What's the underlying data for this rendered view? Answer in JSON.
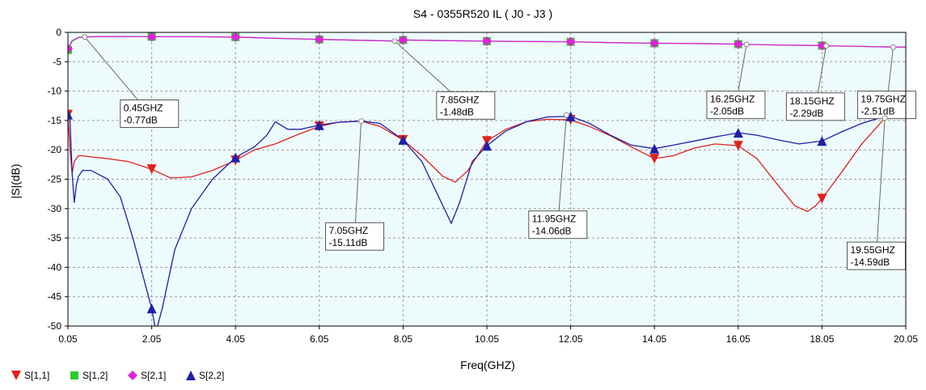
{
  "chart_data": {
    "type": "line",
    "title": "S4 - 0355R520  IL  ( J0 - J3 )",
    "xlabel": "Freq(GHZ)",
    "ylabel": "|S|(dB)",
    "xlim": [
      0.05,
      20.05
    ],
    "ylim": [
      -50,
      0
    ],
    "xticks": [
      0.05,
      2.05,
      4.05,
      6.05,
      8.05,
      10.05,
      12.05,
      14.05,
      16.05,
      18.05,
      20.05
    ],
    "xtick_labels": [
      "0.05",
      "2.05",
      "4.05",
      "6.05",
      "8.05",
      "10.05",
      "12.05",
      "14.05",
      "16.05",
      "18.05",
      "20.05"
    ],
    "yticks": [
      0,
      -5,
      -10,
      -15,
      -20,
      -25,
      -30,
      -35,
      -40,
      -45,
      -50
    ],
    "ytick_labels": [
      "0",
      "-5",
      "-10",
      "-15",
      "-20",
      "-25",
      "-30",
      "-35",
      "-40",
      "-45",
      "-50"
    ],
    "grid": true,
    "legend_position": "bottom-left",
    "series": [
      {
        "name": "S[1,1]",
        "color": "#e0201b",
        "marker": "triangle-down",
        "x": [
          0.05,
          0.1,
          0.15,
          0.2,
          0.3,
          0.4,
          0.6,
          1.0,
          1.5,
          2.05,
          2.5,
          3.0,
          3.5,
          4.05,
          4.5,
          5.0,
          5.5,
          6.05,
          6.5,
          7.05,
          7.5,
          8.05,
          8.5,
          9.0,
          9.3,
          9.6,
          10.05,
          10.5,
          11.0,
          11.5,
          12.05,
          12.5,
          13.0,
          13.5,
          14.05,
          14.5,
          15.0,
          15.5,
          16.05,
          16.5,
          17.0,
          17.4,
          17.7,
          17.9,
          18.05,
          18.5,
          19.0,
          19.55,
          20.05
        ],
        "y": [
          -14,
          -20,
          -24,
          -22,
          -21,
          -21,
          -21.2,
          -21.5,
          -22,
          -23.3,
          -24.8,
          -24.6,
          -23.5,
          -21.8,
          -20,
          -19,
          -17.5,
          -16,
          -15.3,
          -15.1,
          -16,
          -18.3,
          -21,
          -24.5,
          -25.5,
          -23.5,
          -18.5,
          -16.5,
          -15.2,
          -14.8,
          -14.9,
          -16,
          -17.6,
          -19.5,
          -21.5,
          -21,
          -19.7,
          -19,
          -19.3,
          -21.5,
          -26,
          -29.5,
          -30.5,
          -29.5,
          -28.3,
          -24,
          -19,
          -14.59,
          -13.5
        ],
        "marker_x": [
          0.05,
          2.05,
          4.05,
          6.05,
          8.05,
          10.05,
          12.05,
          14.05,
          16.05,
          18.05
        ],
        "marker_y": [
          -14,
          -23.3,
          -21.8,
          -16,
          -18.3,
          -18.5,
          -14.9,
          -21.5,
          -19.3,
          -28.3
        ]
      },
      {
        "name": "S[1,2]",
        "color": "#2ec92e",
        "marker": "square",
        "x": [
          0.05,
          0.15,
          0.3,
          0.45,
          1.0,
          2.05,
          3.0,
          4.05,
          5.0,
          6.05,
          7.05,
          7.85,
          8.05,
          9.0,
          10.05,
          11.0,
          12.05,
          13.0,
          14.05,
          15.0,
          16.05,
          16.25,
          17.0,
          18.05,
          18.15,
          19.0,
          19.75,
          20.05
        ],
        "y": [
          -3,
          -1.5,
          -0.9,
          -0.77,
          -0.7,
          -0.75,
          -0.75,
          -0.8,
          -1.0,
          -1.2,
          -1.35,
          -1.48,
          -1.3,
          -1.4,
          -1.5,
          -1.55,
          -1.6,
          -1.75,
          -1.85,
          -1.9,
          -2.0,
          -2.05,
          -2.15,
          -2.25,
          -2.29,
          -2.4,
          -2.51,
          -2.5
        ],
        "marker_x": [
          0.05,
          2.05,
          4.05,
          6.05,
          8.05,
          10.05,
          12.05,
          14.05,
          16.05,
          18.05
        ],
        "marker_y": [
          -3,
          -0.75,
          -0.8,
          -1.2,
          -1.3,
          -1.5,
          -1.6,
          -1.85,
          -2.0,
          -2.25
        ]
      },
      {
        "name": "S[2,1]",
        "color": "#e021d8",
        "marker": "diamond",
        "x": [
          0.05,
          0.15,
          0.3,
          0.45,
          1.0,
          2.05,
          3.0,
          4.05,
          5.0,
          6.05,
          7.05,
          7.85,
          8.05,
          9.0,
          10.05,
          11.0,
          12.05,
          13.0,
          14.05,
          15.0,
          16.05,
          16.25,
          17.0,
          18.05,
          18.15,
          19.0,
          19.75,
          20.05
        ],
        "y": [
          -2.8,
          -1.4,
          -0.85,
          -0.77,
          -0.7,
          -0.75,
          -0.75,
          -0.8,
          -1.0,
          -1.2,
          -1.35,
          -1.48,
          -1.3,
          -1.4,
          -1.5,
          -1.55,
          -1.6,
          -1.75,
          -1.85,
          -1.9,
          -2.0,
          -2.05,
          -2.15,
          -2.25,
          -2.29,
          -2.4,
          -2.51,
          -2.5
        ],
        "marker_x": [
          0.05,
          2.05,
          4.05,
          6.05,
          8.05,
          10.05,
          12.05,
          14.05,
          16.05,
          18.05
        ],
        "marker_y": [
          -2.8,
          -0.75,
          -0.8,
          -1.2,
          -1.3,
          -1.5,
          -1.6,
          -1.85,
          -2.0,
          -2.25
        ]
      },
      {
        "name": "S[2,2]",
        "color": "#1f1fa8",
        "marker": "triangle-up",
        "x": [
          0.05,
          0.1,
          0.15,
          0.2,
          0.25,
          0.3,
          0.4,
          0.6,
          1.0,
          1.3,
          1.6,
          1.9,
          2.05,
          2.15,
          2.3,
          2.6,
          3.0,
          3.5,
          4.05,
          4.5,
          4.8,
          5.0,
          5.3,
          5.6,
          6.05,
          6.5,
          7.05,
          7.5,
          8.05,
          8.5,
          8.9,
          9.2,
          9.4,
          9.7,
          10.05,
          10.5,
          11.0,
          11.5,
          12.05,
          12.5,
          13.0,
          13.5,
          14.05,
          14.5,
          15.0,
          15.5,
          16.05,
          16.5,
          17.0,
          17.5,
          18.05,
          18.5,
          19.0,
          19.55,
          20.05
        ],
        "y": [
          -14,
          -15,
          -24,
          -29,
          -26,
          -24.5,
          -23.5,
          -23.5,
          -25,
          -28,
          -35,
          -43,
          -47,
          -51,
          -47,
          -37,
          -30,
          -25,
          -21.3,
          -19.5,
          -17.5,
          -15.2,
          -16.5,
          -16.5,
          -15.8,
          -15.3,
          -15.11,
          -15.5,
          -18.3,
          -22,
          -28,
          -32.5,
          -29,
          -22,
          -19.3,
          -16.8,
          -15.2,
          -14.4,
          -14.3,
          -15.5,
          -17.5,
          -19.2,
          -19.8,
          -19.2,
          -18.5,
          -17.8,
          -17.1,
          -17.5,
          -18.3,
          -19,
          -18.5,
          -17,
          -15.5,
          -14.3,
          -13.5
        ],
        "marker_x": [
          0.05,
          2.05,
          4.05,
          6.05,
          8.05,
          10.05,
          12.05,
          14.05,
          16.05,
          18.05
        ],
        "marker_y": [
          -14,
          -47,
          -21.3,
          -15.8,
          -18.3,
          -19.3,
          -14.3,
          -19.8,
          -17.1,
          -18.5
        ]
      }
    ],
    "annotations": [
      {
        "freq": "0.45GHZ",
        "value": "-0.77dB",
        "x": 0.45,
        "y": -0.77,
        "box_x": 1.3,
        "box_y": -11.5
      },
      {
        "freq": "7.85GHZ",
        "value": "-1.48dB",
        "x": 7.85,
        "y": -1.48,
        "box_x": 8.85,
        "box_y": -10.1
      },
      {
        "freq": "16.25GHZ",
        "value": "-2.05dB",
        "x": 16.25,
        "y": -2.05,
        "box_x": 15.3,
        "box_y": -10.0
      },
      {
        "freq": "18.15GHZ",
        "value": "-2.29dB",
        "x": 18.15,
        "y": -2.29,
        "box_x": 17.2,
        "box_y": -10.3
      },
      {
        "freq": "19.75GHZ",
        "value": "-2.51dB",
        "x": 19.75,
        "y": -2.51,
        "box_x": 18.9,
        "box_y": -10.0
      },
      {
        "freq": "7.05GHZ",
        "value": "-15.11dB",
        "x": 7.05,
        "y": -15.11,
        "box_x": 6.2,
        "box_y": -32.4
      },
      {
        "freq": "11.95GHZ",
        "value": "-14.06dB",
        "x": 11.95,
        "y": -14.06,
        "box_x": 11.05,
        "box_y": -30.4
      },
      {
        "freq": "19.55GHZ",
        "value": "-14.59dB",
        "x": 19.55,
        "y": -14.59,
        "box_x": 18.65,
        "box_y": -35.7
      }
    ]
  }
}
